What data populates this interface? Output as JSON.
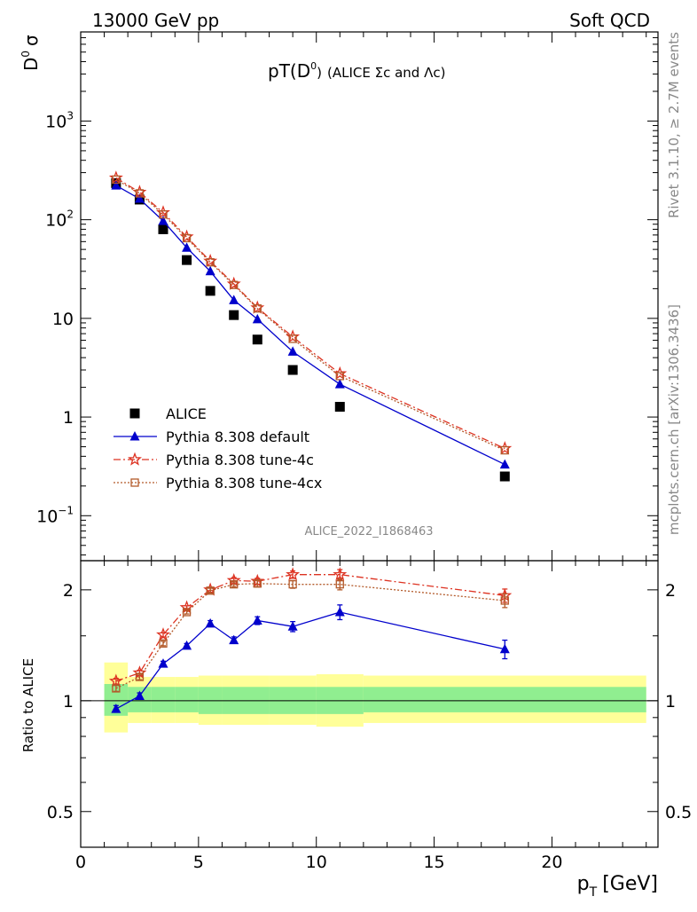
{
  "header": {
    "left": "13000 GeV pp",
    "right": "Soft QCD"
  },
  "side": {
    "rivet": "Rivet 3.1.10, ≥ 2.7M events",
    "mcplots": "mcplots.cern.ch [arXiv:1306.3436]"
  },
  "analysis_id": "ALICE_2022_I1868463",
  "colors": {
    "data": "#000000",
    "default": "#0000cc",
    "tune4c": "#dd3322",
    "tune4cx": "#b35a2a",
    "band_inner": "#90ee90",
    "band_outer": "#ffff99"
  },
  "chart_data": [
    {
      "type": "scatter",
      "title": "pT(D0) (ALICE Σc and Λc)",
      "title_parts": {
        "main": "pT(D",
        "sup": "0",
        "close": ")",
        "rest": "(ALICE Σc and Λc)"
      },
      "ylabel": "D0 σ",
      "ylabel_parts": {
        "base": "D",
        "sup": "0",
        "rest": "σ"
      },
      "yscale": "log",
      "ylim": [
        0.035,
        8000
      ],
      "xlim": [
        0,
        24.5
      ],
      "yticks": [
        {
          "v": 0.1,
          "base": "10",
          "exp": "−1"
        },
        {
          "v": 1,
          "base": "1",
          "exp": ""
        },
        {
          "v": 10,
          "base": "10",
          "exp": ""
        },
        {
          "v": 100,
          "base": "10",
          "exp": "2"
        },
        {
          "v": 1000,
          "base": "10",
          "exp": "3"
        }
      ],
      "legend_position": "lower-left",
      "series": [
        {
          "key": "data",
          "name": "ALICE",
          "marker": "square",
          "x": [
            1.5,
            2.5,
            3.5,
            4.5,
            5.5,
            6.5,
            7.5,
            9,
            11,
            18
          ],
          "y": [
            235,
            160,
            80,
            39,
            19,
            10.8,
            6.1,
            3.0,
            1.27,
            0.25
          ]
        },
        {
          "key": "default",
          "name": "Pythia 8.308 default",
          "marker": "triangle",
          "line": "solid",
          "x": [
            1.5,
            2.5,
            3.5,
            4.5,
            5.5,
            6.5,
            7.5,
            9,
            11,
            18
          ],
          "y": [
            222,
            163,
            97,
            52,
            30,
            15.3,
            9.8,
            4.6,
            2.15,
            0.33
          ]
        },
        {
          "key": "tune4c",
          "name": "Pythia 8.308 tune-4c",
          "marker": "star",
          "line": "dashdot",
          "x": [
            1.5,
            2.5,
            3.5,
            4.5,
            5.5,
            6.5,
            7.5,
            9,
            11,
            18
          ],
          "y": [
            265,
            190,
            118,
            67,
            38,
            22.3,
            12.8,
            6.5,
            2.75,
            0.48
          ]
        },
        {
          "key": "tune4cx",
          "name": "Pythia 8.308 tune-4cx",
          "marker": "open-square",
          "line": "dotted",
          "x": [
            1.5,
            2.5,
            3.5,
            4.5,
            5.5,
            6.5,
            7.5,
            9,
            11,
            18
          ],
          "y": [
            255,
            185,
            113,
            65,
            37,
            21.8,
            12.6,
            6.2,
            2.6,
            0.46
          ]
        }
      ]
    },
    {
      "type": "line",
      "ylabel": "Ratio to ALICE",
      "xlabel": "pT [GeV]",
      "xlabel_parts": {
        "base": "p",
        "sub": "T",
        "rest": "[GeV]"
      },
      "xlim": [
        0,
        24.5
      ],
      "ylim": [
        0.4,
        2.4
      ],
      "xticks": [
        "0",
        "5",
        "10",
        "15",
        "20"
      ],
      "yticks": [
        "0.5",
        "1",
        "2"
      ],
      "reference": 1,
      "bands": [
        {
          "x0": 1,
          "x1": 2,
          "inner": [
            0.91,
            1.11
          ],
          "outer": [
            0.82,
            1.27
          ]
        },
        {
          "x0": 2,
          "x1": 3,
          "inner": [
            0.93,
            1.09
          ],
          "outer": [
            0.87,
            1.16
          ]
        },
        {
          "x0": 3,
          "x1": 4,
          "inner": [
            0.93,
            1.09
          ],
          "outer": [
            0.87,
            1.16
          ]
        },
        {
          "x0": 4,
          "x1": 5,
          "inner": [
            0.93,
            1.09
          ],
          "outer": [
            0.87,
            1.16
          ]
        },
        {
          "x0": 5,
          "x1": 6,
          "inner": [
            0.92,
            1.09
          ],
          "outer": [
            0.86,
            1.17
          ]
        },
        {
          "x0": 6,
          "x1": 7,
          "inner": [
            0.92,
            1.09
          ],
          "outer": [
            0.86,
            1.17
          ]
        },
        {
          "x0": 7,
          "x1": 8,
          "inner": [
            0.92,
            1.09
          ],
          "outer": [
            0.86,
            1.17
          ]
        },
        {
          "x0": 8,
          "x1": 10,
          "inner": [
            0.92,
            1.09
          ],
          "outer": [
            0.86,
            1.17
          ]
        },
        {
          "x0": 10,
          "x1": 12,
          "inner": [
            0.92,
            1.09
          ],
          "outer": [
            0.85,
            1.18
          ]
        },
        {
          "x0": 12,
          "x1": 24,
          "inner": [
            0.93,
            1.09
          ],
          "outer": [
            0.87,
            1.17
          ]
        }
      ],
      "series": [
        {
          "key": "default",
          "name": "Pythia 8.308 default",
          "marker": "triangle",
          "line": "solid",
          "x": [
            1.5,
            2.5,
            3.5,
            4.5,
            5.5,
            6.5,
            7.5,
            9,
            11,
            18
          ],
          "y": [
            0.95,
            1.03,
            1.26,
            1.41,
            1.62,
            1.46,
            1.65,
            1.59,
            1.74,
            1.38
          ],
          "err": [
            0.02,
            0.02,
            0.02,
            0.02,
            0.03,
            0.03,
            0.04,
            0.05,
            0.08,
            0.08
          ]
        },
        {
          "key": "tune4c",
          "name": "Pythia 8.308 tune-4c",
          "marker": "star",
          "line": "dashdot",
          "x": [
            1.5,
            2.5,
            3.5,
            4.5,
            5.5,
            6.5,
            7.5,
            9,
            11,
            18
          ],
          "y": [
            1.13,
            1.19,
            1.51,
            1.79,
            2.0,
            2.12,
            2.11,
            2.2,
            2.2,
            1.93
          ],
          "err": [
            0.02,
            0.02,
            0.02,
            0.02,
            0.03,
            0.04,
            0.04,
            0.05,
            0.07,
            0.08
          ]
        },
        {
          "key": "tune4cx",
          "name": "Pythia 8.308 tune-4cx",
          "marker": "open-square",
          "line": "dotted",
          "x": [
            1.5,
            2.5,
            3.5,
            4.5,
            5.5,
            6.5,
            7.5,
            9,
            11,
            18
          ],
          "y": [
            1.08,
            1.16,
            1.43,
            1.74,
            1.99,
            2.07,
            2.08,
            2.07,
            2.07,
            1.87
          ],
          "err": [
            0.02,
            0.02,
            0.02,
            0.02,
            0.03,
            0.03,
            0.04,
            0.05,
            0.07,
            0.08
          ]
        }
      ]
    }
  ]
}
